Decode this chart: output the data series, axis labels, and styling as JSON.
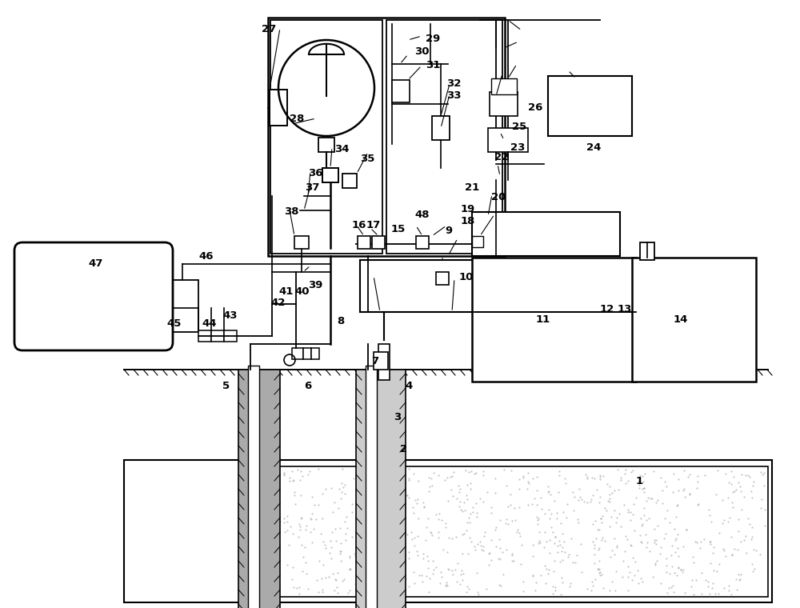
{
  "bg": "#ffffff",
  "lc": "#1a1a1a",
  "gray": "#aaaaaa",
  "lgray": "#cccccc"
}
